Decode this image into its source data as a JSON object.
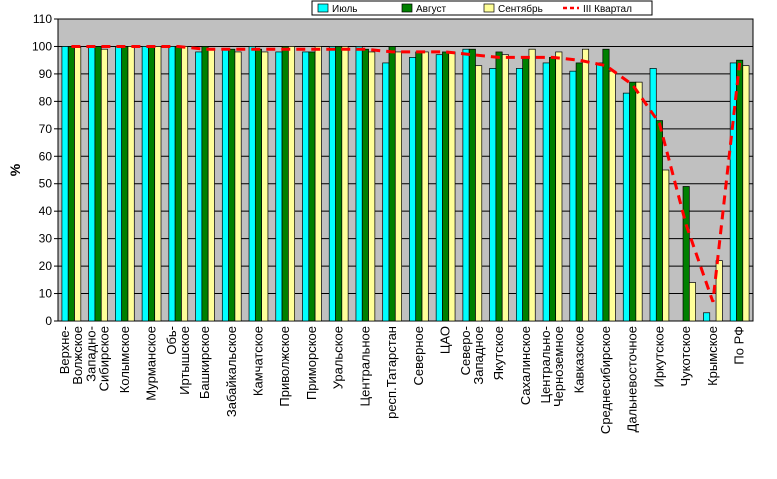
{
  "chart_data": {
    "type": "bar",
    "ylabel": "%",
    "ylim": [
      0,
      110
    ],
    "yticks": [
      0,
      10,
      20,
      30,
      40,
      50,
      60,
      70,
      80,
      90,
      100,
      110
    ],
    "grid": true,
    "legend_position": "top-right",
    "categories": [
      "Верхне-Волжское",
      "Западно-Сибирское",
      "Колымское",
      "Мурманское",
      "Обь-Иртышское",
      "Башкирское",
      "Забайкальское",
      "Камчатское",
      "Приволжское",
      "Приморское",
      "Уральское",
      "Центральное",
      "респ.Татарстан",
      "Северное",
      "ЦАО",
      "Северо-Западное",
      "Якутское",
      "Сахалинское",
      "Центрально-Черноземное",
      "Кавказское",
      "Среднесибирское",
      "Дальневосточное",
      "Иркутское",
      "Чукотское",
      "Крымское",
      "По РФ"
    ],
    "labels": [
      [
        "Верхне-",
        "Волжское"
      ],
      [
        "Западно-",
        "Сибирское"
      ],
      [
        "Колымское"
      ],
      [
        "Мурманское"
      ],
      [
        "Обь-",
        "Иртышское"
      ],
      [
        "Башкирское"
      ],
      [
        "Забайкальское"
      ],
      [
        "Камчатское"
      ],
      [
        "Приволжское"
      ],
      [
        "Приморское"
      ],
      [
        "Уральское"
      ],
      [
        "Центральное"
      ],
      [
        "респ.Татарстан"
      ],
      [
        "Северное"
      ],
      [
        "ЦАО"
      ],
      [
        "Северо-",
        "Западное"
      ],
      [
        "Якутское"
      ],
      [
        "Сахалинское"
      ],
      [
        "Центрально-",
        "Черноземное"
      ],
      [
        "Кавказское"
      ],
      [
        "Среднесибирское"
      ],
      [
        "Дальневосточное"
      ],
      [
        "Иркутское"
      ],
      [
        "Чукотское"
      ],
      [
        "Крымское"
      ],
      [
        "По РФ"
      ]
    ],
    "series": [
      {
        "name": "Июль",
        "type": "bar",
        "color": "#00FFFF",
        "values": [
          100,
          100,
          100,
          100,
          100,
          98,
          99,
          100,
          98,
          98,
          100,
          100,
          94,
          96,
          97,
          99,
          92,
          92,
          94,
          91,
          94,
          83,
          92,
          0,
          3,
          94
        ]
      },
      {
        "name": "Август",
        "type": "bar",
        "color": "#008000",
        "values": [
          100,
          100,
          100,
          100,
          100,
          100,
          99,
          99,
          100,
          98,
          100,
          99,
          100,
          98,
          98,
          99,
          98,
          96,
          96,
          94,
          99,
          87,
          73,
          49,
          0,
          95
        ]
      },
      {
        "name": "Сентябрь",
        "type": "bar",
        "color": "#FFFF99",
        "values": [
          100,
          99,
          100,
          100,
          100,
          99,
          98,
          98,
          100,
          100,
          100,
          98,
          98,
          98,
          98,
          93,
          97,
          99,
          98,
          99,
          91,
          87,
          55,
          14,
          22,
          93
        ]
      },
      {
        "name": "III Квартал",
        "type": "line",
        "color": "#FF0000",
        "values": [
          100,
          100,
          100,
          100,
          100,
          99,
          99,
          99,
          99,
          99,
          99,
          99,
          98,
          98,
          98,
          97,
          96,
          96,
          96,
          95,
          93,
          86,
          72,
          35,
          7,
          94
        ]
      }
    ]
  }
}
